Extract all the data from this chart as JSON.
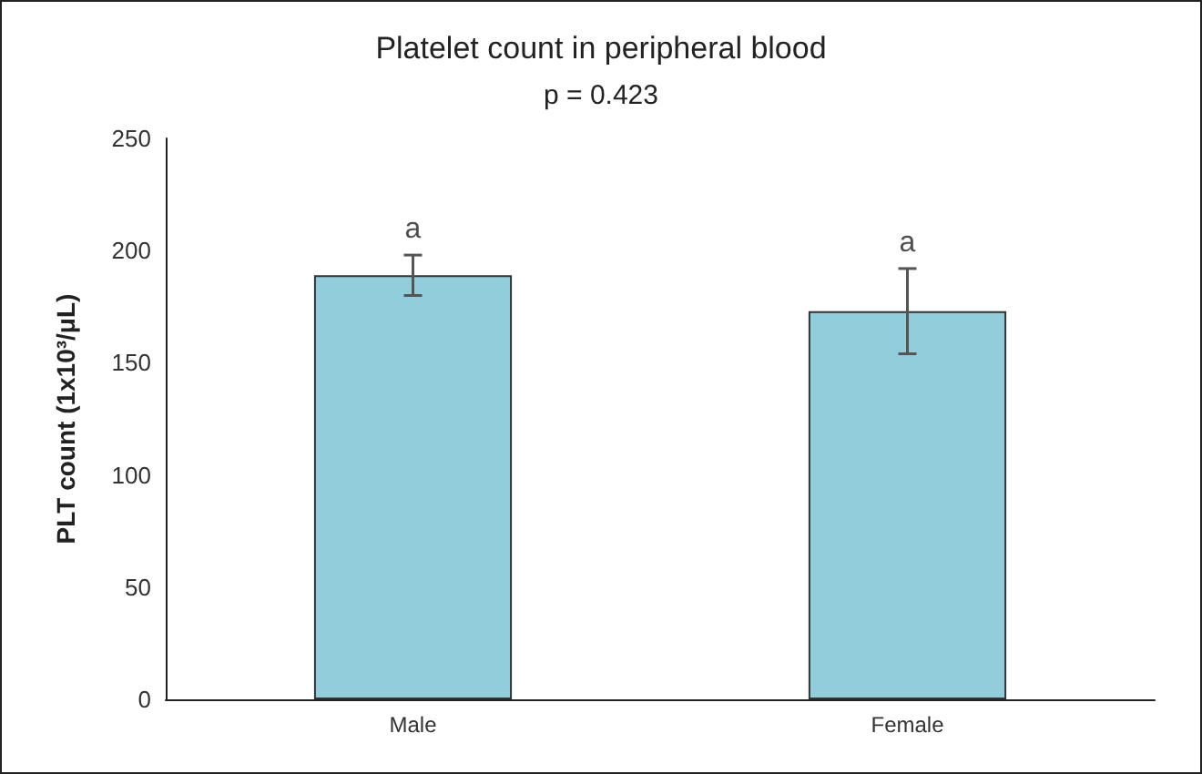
{
  "chart_data": {
    "type": "bar",
    "title": "Platelet count in peripheral blood",
    "ylabel": "PLT count (1x10³/μL)",
    "categories": [
      "Male",
      "Female"
    ],
    "values": [
      189,
      173
    ],
    "errors": [
      9,
      19
    ],
    "color": "#92cddc",
    "ylim": [
      0,
      250
    ],
    "yticks": [
      0,
      50,
      100,
      150,
      200,
      250
    ],
    "grid": false,
    "annotations": [
      "p = 0.423",
      "a",
      "a"
    ]
  }
}
